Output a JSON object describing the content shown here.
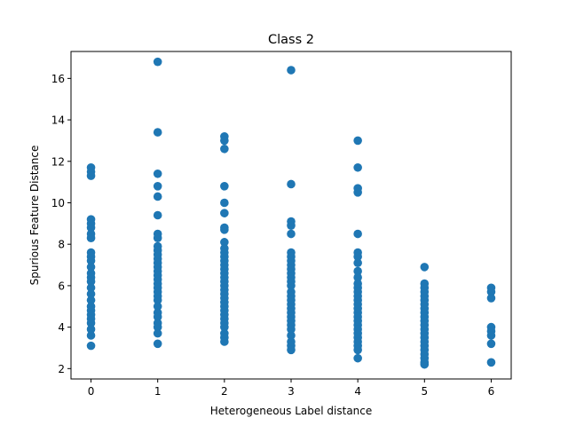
{
  "chart_data": {
    "type": "scatter",
    "title": "Class 2",
    "xlabel": "Heterogeneous Label distance",
    "ylabel": "Spurious Feature Distance",
    "xlim": [
      -0.3,
      6.3
    ],
    "ylim": [
      1.5,
      17.3
    ],
    "xticks": [
      0,
      1,
      2,
      3,
      4,
      5,
      6
    ],
    "yticks": [
      2,
      4,
      6,
      8,
      10,
      12,
      14,
      16
    ],
    "grid": false,
    "marker_color": "#1f77b4",
    "points": [
      {
        "x": 0,
        "y": 11.7
      },
      {
        "x": 0,
        "y": 11.5
      },
      {
        "x": 0,
        "y": 11.3
      },
      {
        "x": 0,
        "y": 9.2
      },
      {
        "x": 0,
        "y": 9.0
      },
      {
        "x": 0,
        "y": 8.8
      },
      {
        "x": 0,
        "y": 8.5
      },
      {
        "x": 0,
        "y": 8.3
      },
      {
        "x": 0,
        "y": 7.6
      },
      {
        "x": 0,
        "y": 7.4
      },
      {
        "x": 0,
        "y": 7.2
      },
      {
        "x": 0,
        "y": 6.9
      },
      {
        "x": 0,
        "y": 6.6
      },
      {
        "x": 0,
        "y": 6.4
      },
      {
        "x": 0,
        "y": 6.2
      },
      {
        "x": 0,
        "y": 5.9
      },
      {
        "x": 0,
        "y": 5.6
      },
      {
        "x": 0,
        "y": 5.3
      },
      {
        "x": 0,
        "y": 5.0
      },
      {
        "x": 0,
        "y": 4.8
      },
      {
        "x": 0,
        "y": 4.6
      },
      {
        "x": 0,
        "y": 4.4
      },
      {
        "x": 0,
        "y": 4.2
      },
      {
        "x": 0,
        "y": 3.9
      },
      {
        "x": 0,
        "y": 3.6
      },
      {
        "x": 0,
        "y": 3.1
      },
      {
        "x": 1,
        "y": 16.8
      },
      {
        "x": 1,
        "y": 13.4
      },
      {
        "x": 1,
        "y": 11.4
      },
      {
        "x": 1,
        "y": 10.8
      },
      {
        "x": 1,
        "y": 10.3
      },
      {
        "x": 1,
        "y": 9.4
      },
      {
        "x": 1,
        "y": 8.5
      },
      {
        "x": 1,
        "y": 8.3
      },
      {
        "x": 1,
        "y": 7.9
      },
      {
        "x": 1,
        "y": 7.7
      },
      {
        "x": 1,
        "y": 7.5
      },
      {
        "x": 1,
        "y": 7.3
      },
      {
        "x": 1,
        "y": 7.1
      },
      {
        "x": 1,
        "y": 6.9
      },
      {
        "x": 1,
        "y": 6.7
      },
      {
        "x": 1,
        "y": 6.5
      },
      {
        "x": 1,
        "y": 6.3
      },
      {
        "x": 1,
        "y": 6.1
      },
      {
        "x": 1,
        "y": 5.9
      },
      {
        "x": 1,
        "y": 5.7
      },
      {
        "x": 1,
        "y": 5.5
      },
      {
        "x": 1,
        "y": 5.3
      },
      {
        "x": 1,
        "y": 5.0
      },
      {
        "x": 1,
        "y": 4.7
      },
      {
        "x": 1,
        "y": 4.5
      },
      {
        "x": 1,
        "y": 4.2
      },
      {
        "x": 1,
        "y": 4.0
      },
      {
        "x": 1,
        "y": 3.7
      },
      {
        "x": 1,
        "y": 3.2
      },
      {
        "x": 2,
        "y": 13.2
      },
      {
        "x": 2,
        "y": 13.0
      },
      {
        "x": 2,
        "y": 12.6
      },
      {
        "x": 2,
        "y": 10.8
      },
      {
        "x": 2,
        "y": 10.0
      },
      {
        "x": 2,
        "y": 9.5
      },
      {
        "x": 2,
        "y": 8.8
      },
      {
        "x": 2,
        "y": 8.7
      },
      {
        "x": 2,
        "y": 8.1
      },
      {
        "x": 2,
        "y": 7.8
      },
      {
        "x": 2,
        "y": 7.6
      },
      {
        "x": 2,
        "y": 7.4
      },
      {
        "x": 2,
        "y": 7.2
      },
      {
        "x": 2,
        "y": 7.0
      },
      {
        "x": 2,
        "y": 6.8
      },
      {
        "x": 2,
        "y": 6.6
      },
      {
        "x": 2,
        "y": 6.4
      },
      {
        "x": 2,
        "y": 6.2
      },
      {
        "x": 2,
        "y": 6.0
      },
      {
        "x": 2,
        "y": 5.8
      },
      {
        "x": 2,
        "y": 5.6
      },
      {
        "x": 2,
        "y": 5.4
      },
      {
        "x": 2,
        "y": 5.2
      },
      {
        "x": 2,
        "y": 5.0
      },
      {
        "x": 2,
        "y": 4.8
      },
      {
        "x": 2,
        "y": 4.6
      },
      {
        "x": 2,
        "y": 4.4
      },
      {
        "x": 2,
        "y": 4.2
      },
      {
        "x": 2,
        "y": 4.0
      },
      {
        "x": 2,
        "y": 3.7
      },
      {
        "x": 2,
        "y": 3.5
      },
      {
        "x": 2,
        "y": 3.3
      },
      {
        "x": 3,
        "y": 16.4
      },
      {
        "x": 3,
        "y": 10.9
      },
      {
        "x": 3,
        "y": 9.1
      },
      {
        "x": 3,
        "y": 8.9
      },
      {
        "x": 3,
        "y": 8.5
      },
      {
        "x": 3,
        "y": 7.6
      },
      {
        "x": 3,
        "y": 7.4
      },
      {
        "x": 3,
        "y": 7.2
      },
      {
        "x": 3,
        "y": 7.0
      },
      {
        "x": 3,
        "y": 6.8
      },
      {
        "x": 3,
        "y": 6.6
      },
      {
        "x": 3,
        "y": 6.4
      },
      {
        "x": 3,
        "y": 6.2
      },
      {
        "x": 3,
        "y": 6.0
      },
      {
        "x": 3,
        "y": 5.7
      },
      {
        "x": 3,
        "y": 5.5
      },
      {
        "x": 3,
        "y": 5.3
      },
      {
        "x": 3,
        "y": 5.1
      },
      {
        "x": 3,
        "y": 4.9
      },
      {
        "x": 3,
        "y": 4.7
      },
      {
        "x": 3,
        "y": 4.5
      },
      {
        "x": 3,
        "y": 4.3
      },
      {
        "x": 3,
        "y": 4.1
      },
      {
        "x": 3,
        "y": 3.9
      },
      {
        "x": 3,
        "y": 3.6
      },
      {
        "x": 3,
        "y": 3.3
      },
      {
        "x": 3,
        "y": 3.1
      },
      {
        "x": 3,
        "y": 2.9
      },
      {
        "x": 4,
        "y": 13.0
      },
      {
        "x": 4,
        "y": 11.7
      },
      {
        "x": 4,
        "y": 10.7
      },
      {
        "x": 4,
        "y": 10.5
      },
      {
        "x": 4,
        "y": 8.5
      },
      {
        "x": 4,
        "y": 7.6
      },
      {
        "x": 4,
        "y": 7.4
      },
      {
        "x": 4,
        "y": 7.1
      },
      {
        "x": 4,
        "y": 6.7
      },
      {
        "x": 4,
        "y": 6.4
      },
      {
        "x": 4,
        "y": 6.1
      },
      {
        "x": 4,
        "y": 5.9
      },
      {
        "x": 4,
        "y": 5.7
      },
      {
        "x": 4,
        "y": 5.5
      },
      {
        "x": 4,
        "y": 5.3
      },
      {
        "x": 4,
        "y": 5.1
      },
      {
        "x": 4,
        "y": 4.9
      },
      {
        "x": 4,
        "y": 4.7
      },
      {
        "x": 4,
        "y": 4.5
      },
      {
        "x": 4,
        "y": 4.3
      },
      {
        "x": 4,
        "y": 4.1
      },
      {
        "x": 4,
        "y": 3.9
      },
      {
        "x": 4,
        "y": 3.7
      },
      {
        "x": 4,
        "y": 3.5
      },
      {
        "x": 4,
        "y": 3.3
      },
      {
        "x": 4,
        "y": 3.1
      },
      {
        "x": 4,
        "y": 2.9
      },
      {
        "x": 4,
        "y": 2.5
      },
      {
        "x": 5,
        "y": 6.9
      },
      {
        "x": 5,
        "y": 6.1
      },
      {
        "x": 5,
        "y": 5.9
      },
      {
        "x": 5,
        "y": 5.7
      },
      {
        "x": 5,
        "y": 5.5
      },
      {
        "x": 5,
        "y": 5.3
      },
      {
        "x": 5,
        "y": 5.1
      },
      {
        "x": 5,
        "y": 4.9
      },
      {
        "x": 5,
        "y": 4.7
      },
      {
        "x": 5,
        "y": 4.5
      },
      {
        "x": 5,
        "y": 4.3
      },
      {
        "x": 5,
        "y": 4.1
      },
      {
        "x": 5,
        "y": 3.9
      },
      {
        "x": 5,
        "y": 3.7
      },
      {
        "x": 5,
        "y": 3.5
      },
      {
        "x": 5,
        "y": 3.3
      },
      {
        "x": 5,
        "y": 3.1
      },
      {
        "x": 5,
        "y": 2.9
      },
      {
        "x": 5,
        "y": 2.7
      },
      {
        "x": 5,
        "y": 2.5
      },
      {
        "x": 5,
        "y": 2.3
      },
      {
        "x": 5,
        "y": 2.2
      },
      {
        "x": 6,
        "y": 5.9
      },
      {
        "x": 6,
        "y": 5.7
      },
      {
        "x": 6,
        "y": 5.4
      },
      {
        "x": 6,
        "y": 4.0
      },
      {
        "x": 6,
        "y": 3.8
      },
      {
        "x": 6,
        "y": 3.6
      },
      {
        "x": 6,
        "y": 3.2
      },
      {
        "x": 6,
        "y": 2.3
      }
    ]
  }
}
